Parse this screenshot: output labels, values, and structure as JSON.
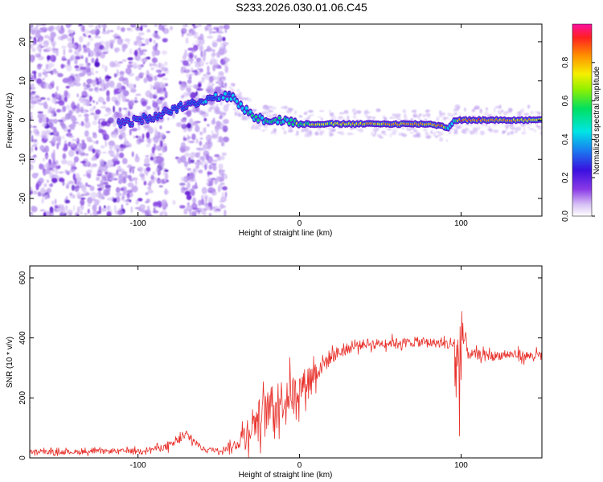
{
  "title": "S233.2026.030.01.06.C45",
  "colors": {
    "snr_line": "#e8302a",
    "spectrum_purple": "#6a1fd6",
    "spectrum_light": "#c9b2f3"
  },
  "chart_data": [
    {
      "type": "heatmap",
      "title": "S233.2026.030.01.06.C45",
      "xlabel": "Height of straight line (km)",
      "ylabel": "Frequency (Hz)",
      "xlim": [
        -167,
        150
      ],
      "ylim": [
        -24.5,
        24.5
      ],
      "xticks": [
        -100,
        0,
        100
      ],
      "yticks": [
        -20,
        -10,
        0,
        10,
        20
      ],
      "colorbar": {
        "label": "Normalized spectral amplitude",
        "range": [
          0,
          1
        ],
        "ticks": [
          0.0,
          0.2,
          0.4,
          0.6,
          0.8
        ],
        "colormap": "rainbow (white-purple-blue-cyan-green-yellow-orange-red-magenta)"
      },
      "ridge": {
        "x": [
          -110,
          -100,
          -90,
          -80,
          -70,
          -60,
          -50,
          -42,
          -35,
          -28,
          -20,
          -10,
          0,
          10,
          20,
          40,
          60,
          70,
          80,
          88,
          92,
          96,
          100,
          110,
          120,
          130,
          140,
          150
        ],
        "freq": [
          -1,
          0,
          1,
          2.5,
          4,
          5,
          6,
          6,
          3,
          1,
          0,
          0,
          -1,
          -1,
          -1,
          -1,
          -1,
          -1,
          -1,
          -1.5,
          -2,
          0,
          0,
          0,
          0,
          0,
          0,
          0
        ],
        "amplitude": [
          0.25,
          0.3,
          0.3,
          0.35,
          0.3,
          0.4,
          0.45,
          0.5,
          0.55,
          0.55,
          0.6,
          0.6,
          0.7,
          0.75,
          0.75,
          0.8,
          0.85,
          0.85,
          0.8,
          0.85,
          0.5,
          0.6,
          0.85,
          0.9,
          0.85,
          0.8,
          0.8,
          0.75
        ]
      },
      "noise_region": {
        "x_start": -167,
        "x_end": -45,
        "gap": [
          -82,
          -73
        ]
      }
    },
    {
      "type": "line",
      "xlabel": "Height of straight line (km)",
      "ylabel": "SNR (10 * v/v)",
      "xlim": [
        -167,
        150
      ],
      "ylim": [
        0,
        640
      ],
      "xticks": [
        -100,
        0,
        100
      ],
      "yticks": [
        0,
        200,
        400,
        600
      ],
      "series": [
        {
          "name": "SNR",
          "x": [
            -167,
            -140,
            -120,
            -100,
            -90,
            -80,
            -75,
            -70,
            -65,
            -60,
            -50,
            -40,
            -30,
            -20,
            -10,
            0,
            10,
            20,
            30,
            40,
            50,
            60,
            70,
            80,
            90,
            95,
            98,
            100,
            103,
            105,
            110,
            120,
            130,
            140,
            150
          ],
          "y": [
            20,
            20,
            22,
            24,
            30,
            40,
            60,
            75,
            55,
            30,
            25,
            40,
            110,
            160,
            200,
            230,
            290,
            340,
            365,
            380,
            382,
            385,
            385,
            385,
            380,
            380,
            300,
            440,
            370,
            345,
            345,
            340,
            345,
            340,
            340
          ],
          "spread": [
            15,
            15,
            15,
            15,
            18,
            25,
            30,
            30,
            25,
            15,
            15,
            30,
            120,
            130,
            140,
            110,
            80,
            50,
            35,
            30,
            30,
            30,
            30,
            30,
            30,
            60,
            300,
            300,
            80,
            35,
            30,
            30,
            30,
            30,
            30
          ]
        }
      ]
    }
  ]
}
